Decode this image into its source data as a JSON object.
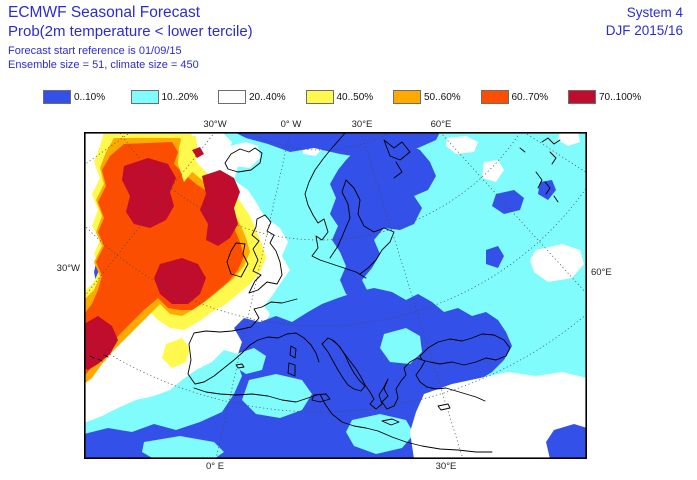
{
  "header": {
    "title": "ECMWF Seasonal Forecast",
    "subtitle": "Prob(2m temperature < lower tercile)",
    "line3": "Forecast start reference is 01/09/15",
    "line4": "Ensemble size = 51, climate size = 450",
    "system": "System 4",
    "season": "DJF 2015/16",
    "text_color": "#2b2bd5"
  },
  "legend": {
    "items": [
      {
        "label": "0..10%",
        "color": "#3350e8"
      },
      {
        "label": "10..20%",
        "color": "#80fcfc"
      },
      {
        "label": "20..40%",
        "color": "#ffffff"
      },
      {
        "label": "40..50%",
        "color": "#fff94d"
      },
      {
        "label": "50..60%",
        "color": "#ffaa00"
      },
      {
        "label": "60..70%",
        "color": "#fc4e00"
      },
      {
        "label": "70..100%",
        "color": "#c00d2d"
      }
    ]
  },
  "map_labels": {
    "top": [
      "30°W",
      "0° W",
      "30°E",
      "60°E"
    ],
    "left": "30°W",
    "right": "60°E",
    "bottom": [
      "0° E",
      "30°E"
    ]
  },
  "palette": {
    "blue": "#3350e8",
    "cyan": "#80fcfc",
    "white": "#ffffff",
    "yellow": "#fff94d",
    "orange": "#ffaa00",
    "orangered": "#fc4e00",
    "darkred": "#c00d2d",
    "coast": "#000000",
    "graticule": "#4a4a4a",
    "frame": "#000000"
  }
}
